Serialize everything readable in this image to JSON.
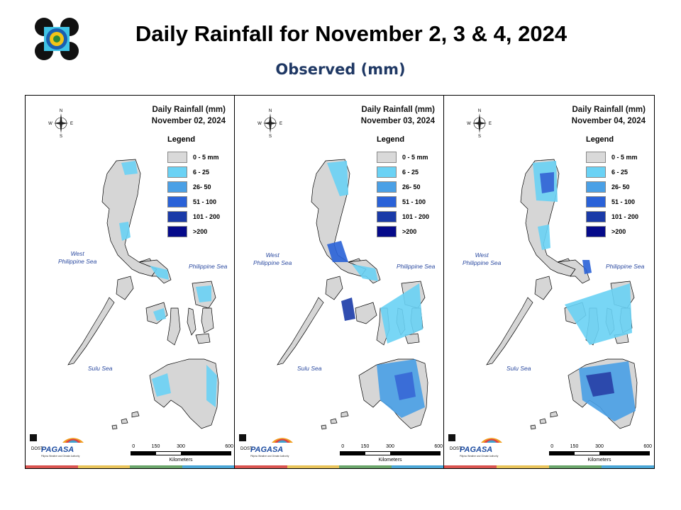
{
  "header": {
    "title": "Daily Rainfall for November 2, 3 & 4, 2024",
    "subtitle": "Observed (mm)"
  },
  "legend": {
    "title": "Legend",
    "items": [
      {
        "label": "0 - 5 mm",
        "color": "#d9d9d9"
      },
      {
        "label": "6 - 25",
        "color": "#6ad2f5"
      },
      {
        "label": "26- 50",
        "color": "#4aa0e6"
      },
      {
        "label": "51 - 100",
        "color": "#2a62d8"
      },
      {
        "label": "101 - 200",
        "color": "#1a3aa8"
      },
      {
        "label": ">200",
        "color": "#050a8a"
      }
    ]
  },
  "panels": [
    {
      "heading": "Daily Rainfall (mm)",
      "date": "November 02, 2024",
      "rain_levels": {
        "north_luzon": "6 - 25",
        "central_luzon": "0 - 5 mm",
        "bicol": "6 - 25",
        "visayas": "6 - 25",
        "mindanao": "6 - 25"
      }
    },
    {
      "heading": "Daily Rainfall (mm)",
      "date": "November 03, 2024",
      "rain_levels": {
        "north_luzon": "6 - 25",
        "central_luzon": "51 - 100",
        "bicol": "6 - 25",
        "visayas": "6 - 25",
        "mindanao": "51 - 100"
      }
    },
    {
      "heading": "Daily Rainfall (mm)",
      "date": "November 04, 2024",
      "rain_levels": {
        "north_luzon": "51 - 100",
        "central_luzon": "6 - 25",
        "bicol": "26- 50",
        "visayas": "6 - 25",
        "mindanao": "101 - 200"
      }
    }
  ],
  "labels": {
    "west_sea": "West\nPhilippine Sea",
    "philippine_sea": "Philippine Sea",
    "sulu_sea": "Sulu Sea",
    "compass": {
      "n": "N",
      "s": "S",
      "e": "E",
      "w": "W"
    }
  },
  "scale": {
    "ticks": [
      "0",
      "150",
      "300",
      "600"
    ],
    "unit": "Kilometers"
  },
  "branding": {
    "org": "PAGASA",
    "dost": "DOST",
    "tagline": "Pilipino Weather and Climate Authority",
    "strip_colors": [
      "#d9534f",
      "#e8c35a",
      "#6aa56a",
      "#4aa6d6"
    ]
  }
}
